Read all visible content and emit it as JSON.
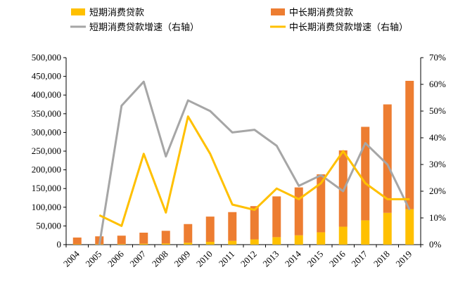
{
  "legend": {
    "short_bar": "短期消费贷款",
    "long_bar": "中长期消费贷款",
    "short_line": "短期消费贷款增速（右轴）",
    "long_line": "中长期消费贷款增速（右轴）"
  },
  "colors": {
    "short_bar": "#FFC000",
    "long_bar": "#ED7D31",
    "short_line": "#A6A6A6",
    "long_line": "#FFC000"
  },
  "chart_data": {
    "type": "bar",
    "stacked": true,
    "categories": [
      "2004",
      "2005",
      "2006",
      "2007",
      "2008",
      "2009",
      "2010",
      "2011",
      "2012",
      "2013",
      "2014",
      "2015",
      "2016",
      "2017",
      "2018",
      "2019"
    ],
    "ylim": [
      0,
      500000
    ],
    "y2lim": [
      0,
      0.7
    ],
    "yticks": [
      "0",
      "50,000",
      "100,000",
      "150,000",
      "200,000",
      "250,000",
      "300,000",
      "350,000",
      "400,000",
      "450,000",
      "500,000"
    ],
    "y2ticks": [
      "0%",
      "10%",
      "20%",
      "30%",
      "40%",
      "50%",
      "60%",
      "70%"
    ],
    "grid": false,
    "legend_position": "top",
    "series": [
      {
        "name": "短期消费贷款",
        "kind": "bar",
        "axis": "left",
        "values": [
          1000,
          1200,
          1500,
          2500,
          3000,
          5000,
          7500,
          10000,
          14000,
          20000,
          25000,
          33000,
          48000,
          65000,
          85000,
          95000
        ]
      },
      {
        "name": "中长期消费贷款",
        "kind": "bar",
        "axis": "left",
        "values": [
          18000,
          21000,
          22500,
          29500,
          34000,
          50000,
          67500,
          77000,
          89000,
          109000,
          128000,
          155000,
          204000,
          250000,
          290000,
          343000
        ]
      },
      {
        "name": "短期消费贷款增速（右轴）",
        "kind": "line",
        "axis": "right",
        "values": [
          null,
          0.0,
          0.52,
          0.61,
          0.33,
          0.54,
          0.5,
          0.42,
          0.43,
          0.37,
          0.22,
          0.26,
          0.2,
          0.38,
          0.3,
          0.13
        ]
      },
      {
        "name": "中长期消费贷款增速（右轴）",
        "kind": "line",
        "axis": "right",
        "values": [
          null,
          0.11,
          0.07,
          0.34,
          0.12,
          0.48,
          0.34,
          0.15,
          0.13,
          0.21,
          0.17,
          0.23,
          0.35,
          0.23,
          0.17,
          0.17
        ]
      }
    ]
  }
}
